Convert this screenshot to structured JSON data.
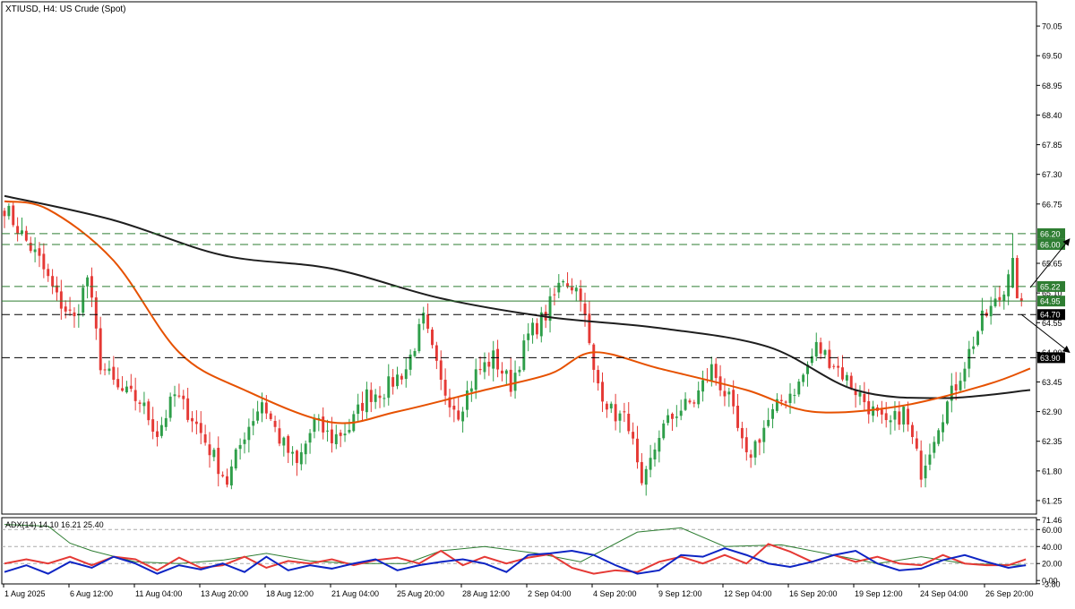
{
  "chart_data": [
    {
      "type": "candlestick",
      "title": "XTIUSD, H4:  US Crude (Spot)",
      "ylim": [
        61.0,
        70.5
      ],
      "y_ticks": [
        {
          "v": 70.05,
          "label": "70.05"
        },
        {
          "v": 69.5,
          "label": "69.50"
        },
        {
          "v": 68.95,
          "label": "68.95"
        },
        {
          "v": 68.4,
          "label": "68.40"
        },
        {
          "v": 67.85,
          "label": "67.85"
        },
        {
          "v": 67.3,
          "label": "67.30"
        },
        {
          "v": 66.75,
          "label": "66.75"
        },
        {
          "v": 65.65,
          "label": "65.65"
        },
        {
          "v": 65.1,
          "label": "65.10"
        },
        {
          "v": 64.55,
          "label": "64.55"
        },
        {
          "v": 64.0,
          "label": "64.00"
        },
        {
          "v": 63.45,
          "label": "63.45"
        },
        {
          "v": 62.9,
          "label": "62.90"
        },
        {
          "v": 62.35,
          "label": "62.35"
        },
        {
          "v": 61.8,
          "label": "61.80"
        },
        {
          "v": 61.25,
          "label": "61.25"
        }
      ],
      "levels": [
        {
          "v": 66.2,
          "label": "66.20",
          "style": "dashed",
          "color": "#2e7d32"
        },
        {
          "v": 66.0,
          "label": "66.00",
          "style": "dashed",
          "color": "#2e7d32"
        },
        {
          "v": 65.22,
          "label": "65.22",
          "style": "dashed",
          "color": "#2e7d32"
        },
        {
          "v": 64.95,
          "label": "64.95",
          "style": "solid",
          "color": "#2e7d32"
        },
        {
          "v": 64.7,
          "label": "64.70",
          "style": "dashed",
          "color": "#000000"
        },
        {
          "v": 63.9,
          "label": "63.90",
          "style": "dashed",
          "color": "#000000"
        }
      ],
      "x_labels": [
        "1 Aug 2025",
        "6 Aug 12:00",
        "11 Aug 04:00",
        "13 Aug 20:00",
        "18 Aug 12:00",
        "21 Aug 04:00",
        "25 Aug 20:00",
        "28 Aug 12:00",
        "2 Sep 04:00",
        "4 Sep 20:00",
        "9 Sep 12:00",
        "12 Sep 04:00",
        "16 Sep 20:00",
        "19 Sep 12:00",
        "24 Sep 04:00",
        "26 Sep 20:00"
      ],
      "candle_count": 234,
      "anchors": [
        [
          0,
          66.7
        ],
        [
          3,
          66.3
        ],
        [
          8,
          65.7
        ],
        [
          12,
          65.0
        ],
        [
          16,
          64.6
        ],
        [
          19,
          65.4
        ],
        [
          22,
          63.8
        ],
        [
          26,
          63.3
        ],
        [
          31,
          63.1
        ],
        [
          35,
          62.5
        ],
        [
          39,
          63.2
        ],
        [
          43,
          62.8
        ],
        [
          47,
          62.2
        ],
        [
          51,
          61.6
        ],
        [
          55,
          62.5
        ],
        [
          59,
          63.1
        ],
        [
          63,
          62.4
        ],
        [
          67,
          61.9
        ],
        [
          71,
          62.7
        ],
        [
          75,
          62.4
        ],
        [
          79,
          62.6
        ],
        [
          83,
          63.2
        ],
        [
          87,
          63.3
        ],
        [
          92,
          63.7
        ],
        [
          96,
          64.6
        ],
        [
          100,
          63.4
        ],
        [
          104,
          62.9
        ],
        [
          108,
          63.6
        ],
        [
          112,
          63.9
        ],
        [
          116,
          63.4
        ],
        [
          120,
          64.3
        ],
        [
          124,
          64.7
        ],
        [
          128,
          65.4
        ],
        [
          132,
          65.1
        ],
        [
          135,
          63.6
        ],
        [
          139,
          62.9
        ],
        [
          143,
          62.7
        ],
        [
          146,
          61.4
        ],
        [
          150,
          62.5
        ],
        [
          154,
          62.9
        ],
        [
          158,
          63.1
        ],
        [
          162,
          63.7
        ],
        [
          166,
          63.1
        ],
        [
          170,
          62.0
        ],
        [
          174,
          62.6
        ],
        [
          178,
          63.1
        ],
        [
          182,
          63.4
        ],
        [
          186,
          64.1
        ],
        [
          190,
          63.8
        ],
        [
          194,
          63.4
        ],
        [
          198,
          63.0
        ],
        [
          202,
          62.6
        ],
        [
          206,
          62.9
        ],
        [
          210,
          61.8
        ],
        [
          214,
          62.7
        ],
        [
          218,
          63.4
        ],
        [
          221,
          64.0
        ],
        [
          224,
          64.6
        ],
        [
          227,
          64.9
        ],
        [
          229,
          65.1
        ],
        [
          231,
          66.1
        ],
        [
          232,
          65.3
        ],
        [
          233,
          64.9
        ]
      ],
      "series": [
        {
          "name": "",
          "color": "#1e1e1e",
          "points": [
            [
              0,
              66.9
            ],
            [
              25,
              66.45
            ],
            [
              50,
              65.8
            ],
            [
              75,
              65.55
            ],
            [
              100,
              65.0
            ],
            [
              125,
              64.65
            ],
            [
              150,
              64.45
            ],
            [
              175,
              64.1
            ],
            [
              195,
              63.3
            ],
            [
              215,
              63.15
            ],
            [
              235,
              63.3
            ]
          ]
        },
        {
          "name": "",
          "color": "#e65100",
          "points": [
            [
              0,
              66.8
            ],
            [
              10,
              66.65
            ],
            [
              25,
              65.7
            ],
            [
              40,
              64.0
            ],
            [
              55,
              63.3
            ],
            [
              75,
              62.7
            ],
            [
              90,
              62.9
            ],
            [
              110,
              63.3
            ],
            [
              125,
              63.6
            ],
            [
              135,
              64.0
            ],
            [
              150,
              63.7
            ],
            [
              170,
              63.3
            ],
            [
              185,
              62.9
            ],
            [
              205,
              63.0
            ],
            [
              225,
              63.4
            ],
            [
              235,
              63.7
            ]
          ]
        }
      ]
    },
    {
      "type": "line",
      "title": "ADX(14) 14.10 16.21 25.40",
      "ylim": [
        -4,
        74
      ],
      "y_ticks": [
        {
          "v": 71.46,
          "label": "71.46"
        },
        {
          "v": 60.0,
          "label": "60.00"
        },
        {
          "v": 40.0,
          "label": "40.00"
        },
        {
          "v": 20.0,
          "label": "20.00"
        },
        {
          "v": 0.0,
          "label": "0.00"
        },
        {
          "v": -3.8,
          "label": "-3.80"
        }
      ],
      "series": [
        {
          "name": "",
          "color": "#2e7d32",
          "points": [
            [
              0,
              66
            ],
            [
              10,
              64
            ],
            [
              15,
              44
            ],
            [
              20,
              35
            ],
            [
              30,
              22
            ],
            [
              40,
              20
            ],
            [
              50,
              24
            ],
            [
              60,
              32
            ],
            [
              70,
              23
            ],
            [
              80,
              20
            ],
            [
              92,
              20
            ],
            [
              100,
              35
            ],
            [
              110,
              40
            ],
            [
              122,
              32
            ],
            [
              132,
              22
            ],
            [
              145,
              57
            ],
            [
              155,
              62
            ],
            [
              165,
              40
            ],
            [
              178,
              42
            ],
            [
              190,
              30
            ],
            [
              200,
              20
            ],
            [
              210,
              28
            ],
            [
              220,
              20
            ],
            [
              234,
              18
            ]
          ]
        },
        {
          "name": "",
          "color": "#e53935",
          "points": [
            [
              0,
              20
            ],
            [
              5,
              25
            ],
            [
              10,
              20
            ],
            [
              15,
              28
            ],
            [
              20,
              18
            ],
            [
              25,
              28
            ],
            [
              30,
              25
            ],
            [
              35,
              12
            ],
            [
              40,
              27
            ],
            [
              45,
              15
            ],
            [
              50,
              18
            ],
            [
              55,
              28
            ],
            [
              60,
              15
            ],
            [
              65,
              23
            ],
            [
              70,
              20
            ],
            [
              75,
              25
            ],
            [
              80,
              18
            ],
            [
              85,
              24
            ],
            [
              90,
              27
            ],
            [
              95,
              20
            ],
            [
              100,
              35
            ],
            [
              105,
              18
            ],
            [
              110,
              28
            ],
            [
              115,
              20
            ],
            [
              120,
              27
            ],
            [
              125,
              31
            ],
            [
              130,
              15
            ],
            [
              135,
              8
            ],
            [
              140,
              12
            ],
            [
              145,
              10
            ],
            [
              150,
              22
            ],
            [
              155,
              28
            ],
            [
              160,
              20
            ],
            [
              165,
              30
            ],
            [
              170,
              20
            ],
            [
              175,
              43
            ],
            [
              180,
              34
            ],
            [
              185,
              22
            ],
            [
              190,
              30
            ],
            [
              195,
              22
            ],
            [
              200,
              28
            ],
            [
              205,
              20
            ],
            [
              210,
              18
            ],
            [
              215,
              30
            ],
            [
              220,
              20
            ],
            [
              225,
              18
            ],
            [
              230,
              18
            ],
            [
              234,
              25
            ]
          ]
        },
        {
          "name": "",
          "color": "#0d24c4",
          "points": [
            [
              0,
              10
            ],
            [
              5,
              18
            ],
            [
              10,
              8
            ],
            [
              15,
              22
            ],
            [
              20,
              15
            ],
            [
              25,
              28
            ],
            [
              30,
              20
            ],
            [
              35,
              8
            ],
            [
              40,
              18
            ],
            [
              45,
              13
            ],
            [
              50,
              20
            ],
            [
              55,
              10
            ],
            [
              60,
              28
            ],
            [
              65,
              12
            ],
            [
              70,
              18
            ],
            [
              75,
              14
            ],
            [
              80,
              20
            ],
            [
              85,
              25
            ],
            [
              90,
              12
            ],
            [
              95,
              18
            ],
            [
              100,
              22
            ],
            [
              105,
              25
            ],
            [
              110,
              20
            ],
            [
              115,
              10
            ],
            [
              120,
              30
            ],
            [
              125,
              32
            ],
            [
              130,
              35
            ],
            [
              135,
              30
            ],
            [
              140,
              18
            ],
            [
              145,
              8
            ],
            [
              150,
              12
            ],
            [
              155,
              30
            ],
            [
              160,
              28
            ],
            [
              165,
              38
            ],
            [
              170,
              30
            ],
            [
              175,
              20
            ],
            [
              180,
              16
            ],
            [
              185,
              22
            ],
            [
              190,
              30
            ],
            [
              195,
              35
            ],
            [
              200,
              20
            ],
            [
              205,
              12
            ],
            [
              210,
              14
            ],
            [
              215,
              24
            ],
            [
              220,
              30
            ],
            [
              225,
              22
            ],
            [
              230,
              15
            ],
            [
              234,
              18
            ]
          ]
        }
      ],
      "levels": [
        {
          "v": 60.0,
          "style": "dashed",
          "color": "#aaaaaa"
        },
        {
          "v": 40.0,
          "style": "dashed",
          "color": "#aaaaaa"
        },
        {
          "v": 20.0,
          "style": "dashed",
          "color": "#aaaaaa"
        }
      ]
    }
  ],
  "colors": {
    "bull": "#2e9e49",
    "bear": "#e53935",
    "grid": "#999999",
    "current_price_bg": "#2e7d32"
  }
}
